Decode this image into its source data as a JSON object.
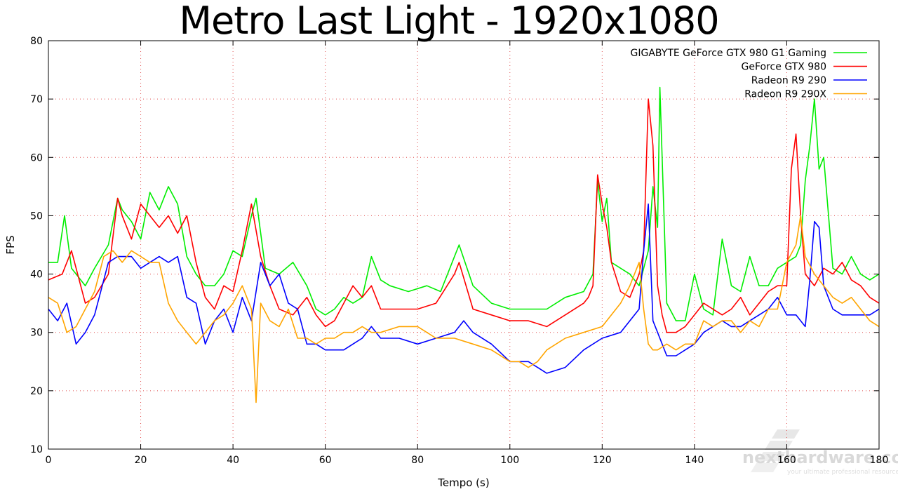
{
  "chart_data": {
    "type": "line",
    "title": "Metro Last Light - 1920x1080",
    "xlabel": "Tempo (s)",
    "ylabel": "FPS",
    "xlim": [
      0,
      180
    ],
    "ylim": [
      10,
      80
    ],
    "xticks": [
      0,
      20,
      40,
      60,
      80,
      100,
      120,
      140,
      160,
      180
    ],
    "yticks": [
      10,
      20,
      30,
      40,
      50,
      60,
      70,
      80
    ],
    "grid": true,
    "legend_position": "top-right",
    "series": [
      {
        "name": "GIGABYTE GeForce GTX 980 G1 Gaming",
        "color": "#00ee00",
        "x": [
          0,
          2,
          3.5,
          5,
          8,
          10,
          13,
          15,
          16,
          18,
          20,
          22,
          24,
          26,
          28,
          30,
          32,
          34,
          36,
          38,
          40,
          42,
          44,
          45,
          47,
          50,
          53,
          56,
          58,
          60,
          62,
          64,
          66,
          68,
          70,
          72,
          74,
          78,
          82,
          85,
          88,
          89,
          92,
          96,
          100,
          104,
          108,
          112,
          116,
          118,
          119,
          120,
          121,
          122,
          124,
          126,
          128,
          130,
          131,
          132,
          132.5,
          133,
          134,
          136,
          138,
          140,
          142,
          144,
          146,
          148,
          150,
          152,
          154,
          156,
          158,
          160,
          162,
          163,
          164,
          165,
          166,
          167,
          168,
          170,
          172,
          174,
          176,
          178,
          180
        ],
        "values": [
          42,
          42,
          50,
          41,
          38,
          41,
          45,
          53,
          51,
          49,
          46,
          54,
          51,
          55,
          52,
          43,
          40,
          38,
          38,
          40,
          44,
          43,
          50,
          53,
          41,
          40,
          42,
          38,
          34,
          33,
          34,
          36,
          35,
          36,
          43,
          39,
          38,
          37,
          38,
          37,
          43,
          45,
          38,
          35,
          34,
          34,
          34,
          36,
          37,
          40,
          56,
          49,
          53,
          42,
          41,
          40,
          38,
          44,
          55,
          48,
          72,
          60,
          35,
          32,
          32,
          40,
          34,
          33,
          46,
          38,
          37,
          43,
          38,
          38,
          41,
          42,
          43,
          45,
          56,
          62,
          70,
          58,
          60,
          41,
          40,
          43,
          40,
          39,
          40
        ]
      },
      {
        "name": "GeForce GTX 980",
        "color": "#ff0000",
        "x": [
          0,
          3,
          5,
          8,
          10,
          13,
          15,
          16,
          18,
          20,
          22,
          24,
          26,
          28,
          30,
          32,
          34,
          36,
          38,
          40,
          42,
          44,
          46,
          48,
          50,
          53,
          56,
          58,
          60,
          62,
          64,
          66,
          68,
          70,
          72,
          76,
          80,
          84,
          88,
          89,
          92,
          96,
          100,
          104,
          108,
          112,
          116,
          117,
          118,
          119,
          120,
          121,
          122,
          124,
          126,
          128,
          129,
          130,
          131,
          132,
          133,
          134,
          136,
          138,
          140,
          142,
          144,
          146,
          148,
          150,
          152,
          154,
          156,
          158,
          160,
          161,
          162,
          163,
          164,
          166,
          168,
          170,
          172,
          174,
          176,
          178,
          180
        ],
        "values": [
          39,
          40,
          44,
          35,
          36,
          40,
          53,
          50,
          46,
          52,
          50,
          48,
          50,
          47,
          50,
          42,
          36,
          34,
          38,
          37,
          44,
          52,
          43,
          38,
          34,
          33,
          36,
          33,
          31,
          32,
          35,
          38,
          36,
          38,
          34,
          34,
          34,
          35,
          40,
          42,
          34,
          33,
          32,
          32,
          31,
          33,
          35,
          36,
          38,
          57,
          52,
          48,
          42,
          37,
          36,
          40,
          44,
          70,
          62,
          38,
          33,
          30,
          30,
          31,
          33,
          35,
          34,
          33,
          34,
          36,
          33,
          35,
          37,
          38,
          38,
          58,
          64,
          50,
          40,
          38,
          41,
          40,
          42,
          39,
          38,
          36,
          35
        ]
      },
      {
        "name": "Radeon R9 290",
        "color": "#0000ff",
        "x": [
          0,
          2,
          4,
          6,
          8,
          10,
          13,
          15,
          18,
          20,
          22,
          24,
          26,
          28,
          30,
          32,
          34,
          36,
          38,
          40,
          42,
          44,
          46,
          48,
          50,
          52,
          54,
          56,
          58,
          60,
          62,
          64,
          66,
          68,
          70,
          72,
          76,
          80,
          84,
          88,
          90,
          92,
          96,
          100,
          104,
          106,
          108,
          112,
          116,
          120,
          124,
          128,
          129,
          130,
          131,
          132,
          134,
          136,
          138,
          140,
          142,
          144,
          146,
          148,
          150,
          152,
          154,
          156,
          158,
          160,
          162,
          164,
          165,
          166,
          167,
          168,
          170,
          172,
          174,
          176,
          178,
          180
        ],
        "values": [
          34,
          32,
          35,
          28,
          30,
          33,
          42,
          43,
          43,
          41,
          42,
          43,
          42,
          43,
          36,
          35,
          28,
          32,
          34,
          30,
          36,
          32,
          42,
          38,
          40,
          35,
          34,
          28,
          28,
          27,
          27,
          27,
          28,
          29,
          31,
          29,
          29,
          28,
          29,
          30,
          32,
          30,
          28,
          25,
          25,
          24,
          23,
          24,
          27,
          29,
          30,
          34,
          44,
          52,
          32,
          30,
          26,
          26,
          27,
          28,
          30,
          31,
          32,
          31,
          31,
          32,
          33,
          34,
          36,
          33,
          33,
          31,
          39,
          49,
          48,
          38,
          34,
          33,
          33,
          33,
          33,
          34
        ]
      },
      {
        "name": "Radeon R9 290X",
        "color": "#ffa500",
        "x": [
          0,
          2,
          4,
          6,
          8,
          10,
          12,
          14,
          16,
          18,
          20,
          22,
          24,
          26,
          28,
          30,
          32,
          34,
          36,
          38,
          40,
          42,
          44,
          45,
          46,
          48,
          50,
          52,
          54,
          56,
          58,
          60,
          62,
          64,
          66,
          68,
          70,
          72,
          76,
          80,
          82,
          84,
          88,
          92,
          96,
          100,
          102,
          104,
          106,
          108,
          112,
          116,
          120,
          124,
          126,
          128,
          129,
          130,
          131,
          132,
          134,
          136,
          138,
          140,
          142,
          144,
          146,
          148,
          150,
          152,
          154,
          156,
          158,
          160,
          162,
          163,
          164,
          166,
          168,
          170,
          172,
          174,
          176,
          178,
          180
        ],
        "values": [
          36,
          35,
          30,
          31,
          34,
          37,
          43,
          44,
          42,
          44,
          43,
          42,
          42,
          35,
          32,
          30,
          28,
          30,
          32,
          33,
          35,
          38,
          34,
          18,
          35,
          32,
          31,
          34,
          29,
          29,
          28,
          29,
          29,
          30,
          30,
          31,
          30,
          30,
          31,
          31,
          30,
          29,
          29,
          28,
          27,
          25,
          25,
          24,
          25,
          27,
          29,
          30,
          31,
          35,
          38,
          42,
          34,
          28,
          27,
          27,
          28,
          27,
          28,
          28,
          32,
          31,
          32,
          32,
          30,
          32,
          31,
          34,
          34,
          42,
          45,
          50,
          43,
          40,
          38,
          36,
          35,
          36,
          34,
          32,
          31
        ]
      }
    ]
  },
  "watermark": {
    "brand": "nexthardware.com",
    "tagline": "your ultimate professional resource"
  }
}
